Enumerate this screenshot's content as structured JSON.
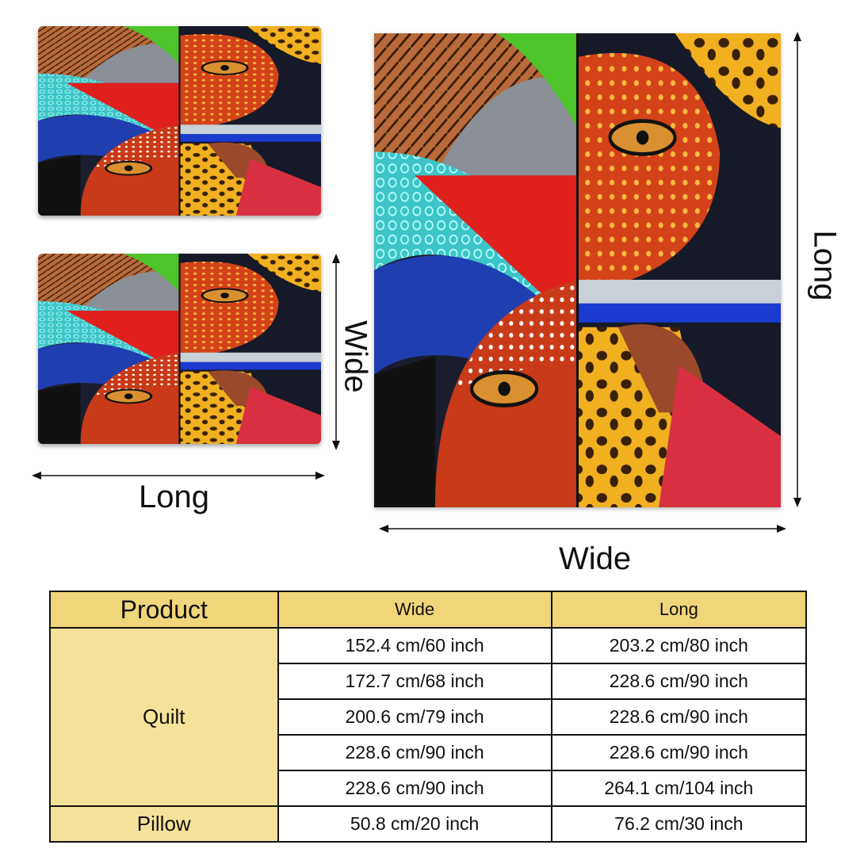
{
  "labels": {
    "pillow_long": "Long",
    "pillow_wide": "Wide",
    "quilt_long": "Long",
    "quilt_wide": "Wide"
  },
  "colors": {
    "header_bg": "#f0d57a",
    "category_bg": "#f5e29a"
  },
  "table": {
    "headers": [
      "Product",
      "Wide",
      "Long"
    ],
    "quilt_label": "Quilt",
    "quilt_rows": [
      [
        "152.4 cm/60 inch",
        "203.2 cm/80 inch"
      ],
      [
        "172.7 cm/68 inch",
        "228.6 cm/90 inch"
      ],
      [
        "200.6 cm/79 inch",
        "228.6 cm/90 inch"
      ],
      [
        "228.6 cm/90 inch",
        "228.6 cm/90 inch"
      ],
      [
        "228.6 cm/90 inch",
        "264.1 cm/104 inch"
      ]
    ],
    "pillow_label": "Pillow",
    "pillow_row": [
      "50.8 cm/20 inch",
      "76.2 cm/30 inch"
    ]
  }
}
